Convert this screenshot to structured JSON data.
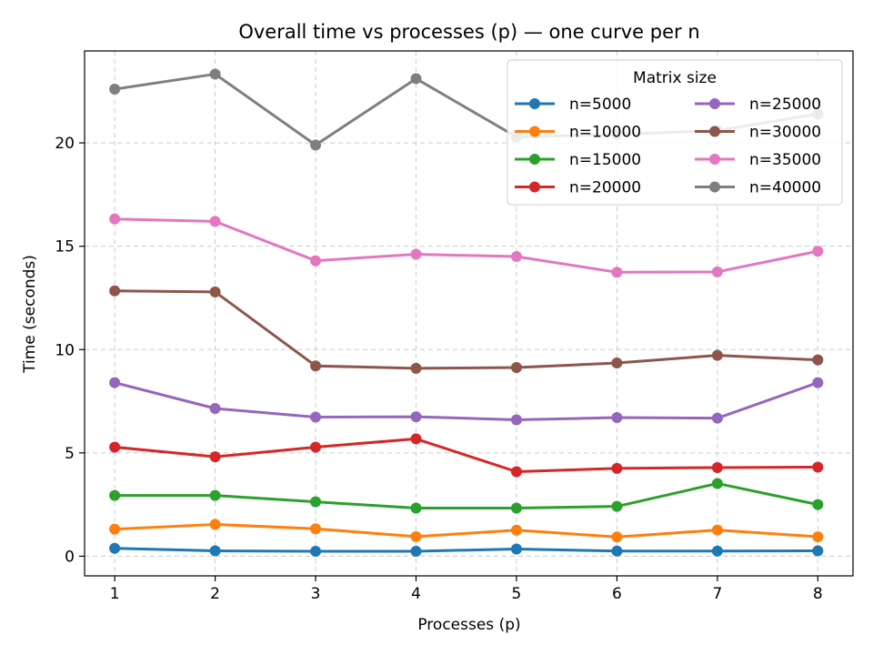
{
  "chart_data": {
    "type": "line",
    "title": "Overall time vs processes (p) — one curve per n",
    "xlabel": "Processes (p)",
    "ylabel": "Time (seconds)",
    "x": [
      1,
      2,
      3,
      4,
      5,
      6,
      7,
      8
    ],
    "xlim": [
      0.7,
      8.35
    ],
    "ylim": [
      -0.95,
      24.45
    ],
    "xticks": [
      "1",
      "2",
      "3",
      "4",
      "5",
      "6",
      "7",
      "8"
    ],
    "yticks": [
      "0",
      "5",
      "10",
      "15",
      "20"
    ],
    "grid": true,
    "legend": {
      "title": "Matrix size",
      "placement": "top-right",
      "columns": 2
    },
    "series": [
      {
        "name": "n=5000",
        "color": "#1f77b4",
        "values": [
          0.38,
          0.26,
          0.24,
          0.24,
          0.35,
          0.25,
          0.25,
          0.26
        ]
      },
      {
        "name": "n=10000",
        "color": "#ff7f0e",
        "values": [
          1.31,
          1.54,
          1.33,
          0.95,
          1.26,
          0.93,
          1.27,
          0.94
        ]
      },
      {
        "name": "n=15000",
        "color": "#2ca02c",
        "values": [
          2.94,
          2.94,
          2.63,
          2.33,
          2.33,
          2.41,
          3.52,
          2.5
        ]
      },
      {
        "name": "n=20000",
        "color": "#d62728",
        "values": [
          5.28,
          4.81,
          5.28,
          5.68,
          4.09,
          4.25,
          4.29,
          4.31
        ]
      },
      {
        "name": "n=25000",
        "color": "#9467bd",
        "values": [
          8.4,
          7.15,
          6.73,
          6.75,
          6.6,
          6.71,
          6.68,
          8.4
        ]
      },
      {
        "name": "n=30000",
        "color": "#8c564b",
        "values": [
          12.84,
          12.79,
          9.21,
          9.09,
          9.13,
          9.35,
          9.72,
          9.5
        ]
      },
      {
        "name": "n=35000",
        "color": "#e377c2",
        "values": [
          16.32,
          16.2,
          14.3,
          14.61,
          14.5,
          13.74,
          13.76,
          14.76
        ]
      },
      {
        "name": "n=40000",
        "color": "#7f7f7f",
        "values": [
          22.6,
          23.33,
          19.9,
          23.11,
          20.29,
          20.41,
          20.6,
          21.4
        ]
      }
    ]
  }
}
